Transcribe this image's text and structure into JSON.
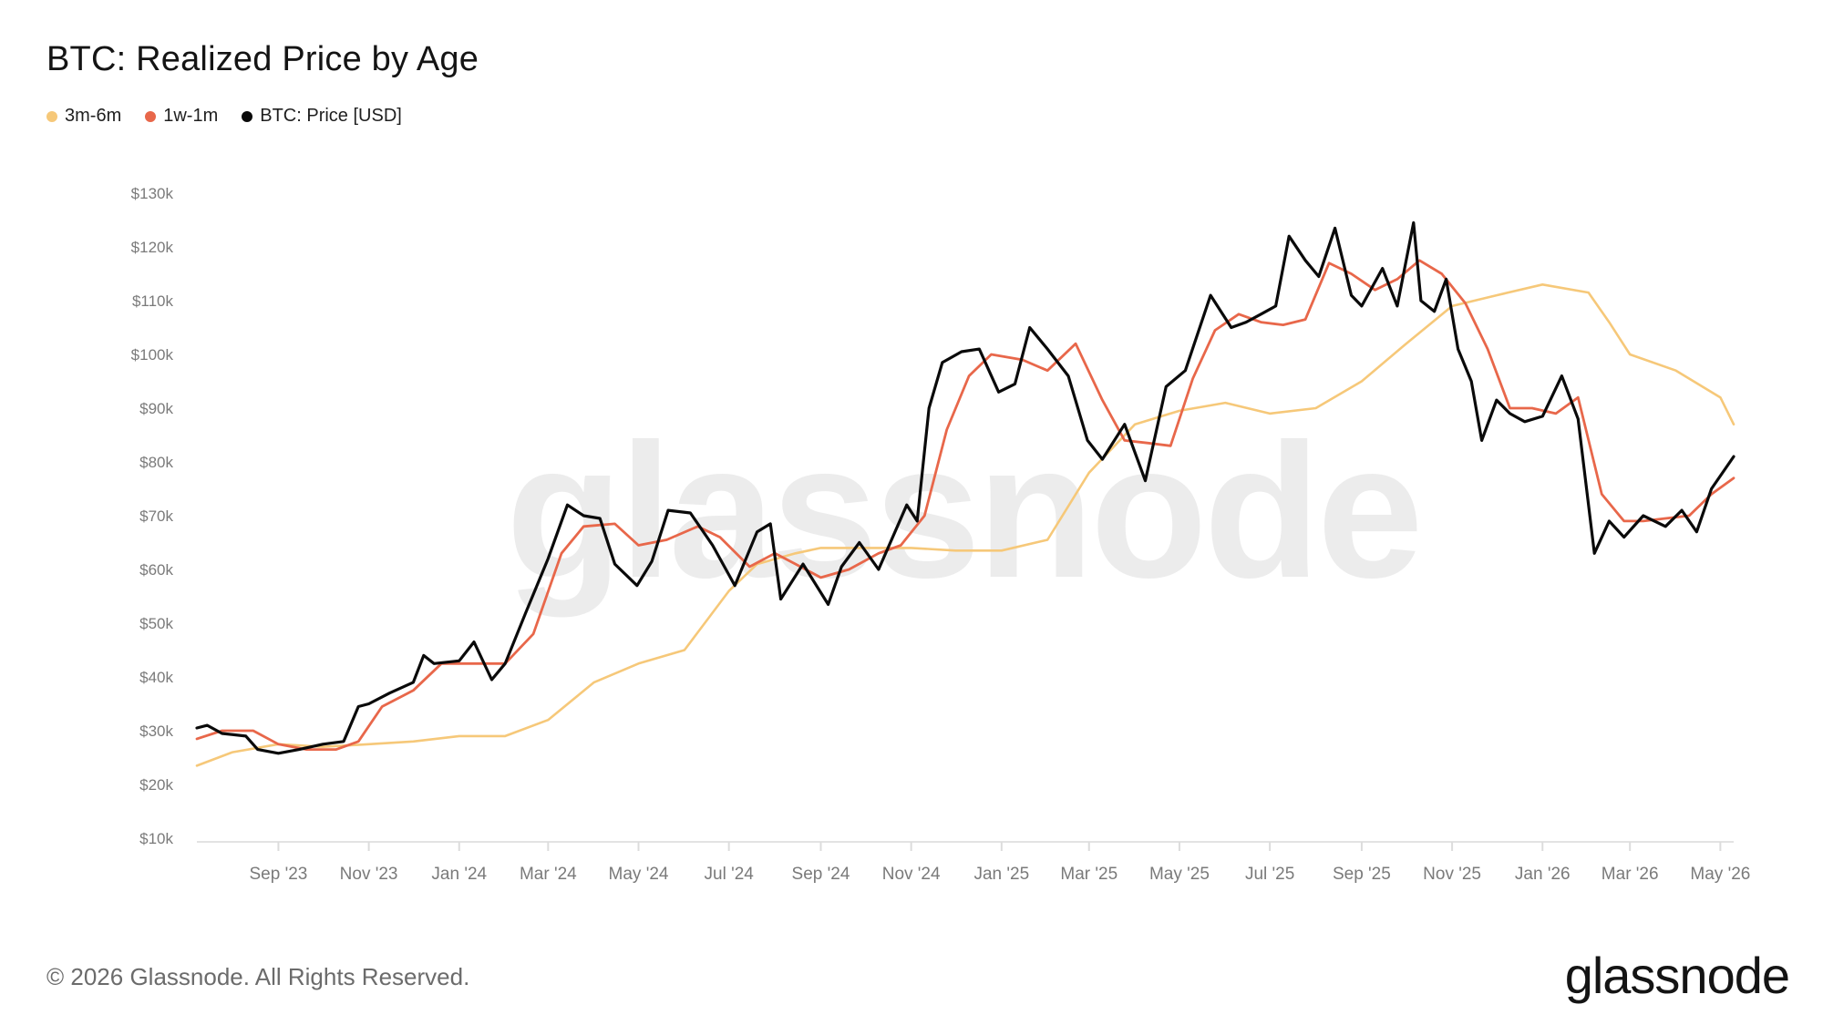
{
  "header": {
    "title": "BTC: Realized Price by Age"
  },
  "watermark": "glassnode",
  "footer": {
    "copyright": "© 2026 Glassnode. All Rights Reserved.",
    "brand": "glassnode"
  },
  "colors": {
    "3m-6m": "#f6c879",
    "1w-1m": "#e8674a",
    "price": "#0a0a0a",
    "grid": "#e6e6e6",
    "tick": "#7a7a7a"
  },
  "chart_data": {
    "type": "line",
    "title": "BTC: Realized Price by Age",
    "xlabel": "",
    "ylabel": "",
    "legend_position": "top-left",
    "grid": false,
    "x_range": [
      "2023-07-08",
      "2026-05-10"
    ],
    "ylim": [
      10000,
      130000
    ],
    "y_ticks": [
      10000,
      20000,
      30000,
      40000,
      50000,
      60000,
      70000,
      80000,
      90000,
      100000,
      110000,
      120000,
      130000
    ],
    "y_tick_labels": [
      "$10k",
      "$20k",
      "$30k",
      "$40k",
      "$50k",
      "$60k",
      "$70k",
      "$80k",
      "$90k",
      "$100k",
      "$110k",
      "$120k",
      "$130k"
    ],
    "x_ticks": [
      "2023-09-01",
      "2023-11-01",
      "2024-01-01",
      "2024-03-01",
      "2024-05-01",
      "2024-07-01",
      "2024-09-01",
      "2024-11-01",
      "2025-01-01",
      "2025-03-01",
      "2025-05-01",
      "2025-07-01",
      "2025-09-01",
      "2025-11-01",
      "2026-01-01",
      "2026-03-01",
      "2026-05-01"
    ],
    "x_tick_labels": [
      "Sep '23",
      "Nov '23",
      "Jan '24",
      "Mar '24",
      "May '24",
      "Jul '24",
      "Sep '24",
      "Nov '24",
      "Jan '25",
      "Mar '25",
      "May '25",
      "Jul '25",
      "Sep '25",
      "Nov '25",
      "Jan '26",
      "Mar '26",
      "May '26"
    ],
    "series": [
      {
        "name": "3m-6m",
        "color": "#f6c879",
        "x": [
          "2023-07-08",
          "2023-08-01",
          "2023-09-01",
          "2023-10-01",
          "2023-11-01",
          "2023-12-01",
          "2024-01-01",
          "2024-02-01",
          "2024-03-01",
          "2024-04-01",
          "2024-05-01",
          "2024-06-01",
          "2024-07-01",
          "2024-07-20",
          "2024-08-15",
          "2024-09-01",
          "2024-10-01",
          "2024-11-01",
          "2024-12-01",
          "2025-01-01",
          "2025-02-01",
          "2025-03-01",
          "2025-04-01",
          "2025-05-01",
          "2025-06-01",
          "2025-07-01",
          "2025-08-01",
          "2025-09-01",
          "2025-10-01",
          "2025-11-01",
          "2025-12-01",
          "2026-01-01",
          "2026-02-01",
          "2026-02-15",
          "2026-03-01",
          "2026-04-01",
          "2026-05-01",
          "2026-05-10"
        ],
        "values": [
          23500,
          26000,
          27500,
          27000,
          27500,
          28000,
          29000,
          29000,
          32000,
          39000,
          42500,
          45000,
          56000,
          61000,
          63000,
          64000,
          64000,
          64000,
          63500,
          63500,
          65500,
          78000,
          87000,
          89500,
          91000,
          89000,
          90000,
          95000,
          102000,
          109000,
          111000,
          113000,
          111500,
          106000,
          100000,
          97000,
          92000,
          87000
        ]
      },
      {
        "name": "1w-1m",
        "color": "#e8674a",
        "x": [
          "2023-07-08",
          "2023-07-25",
          "2023-08-15",
          "2023-09-01",
          "2023-09-20",
          "2023-10-10",
          "2023-10-25",
          "2023-11-10",
          "2023-12-01",
          "2023-12-20",
          "2024-01-10",
          "2024-02-01",
          "2024-02-20",
          "2024-03-10",
          "2024-03-25",
          "2024-04-15",
          "2024-05-01",
          "2024-05-20",
          "2024-06-10",
          "2024-06-25",
          "2024-07-15",
          "2024-08-01",
          "2024-08-15",
          "2024-09-01",
          "2024-09-20",
          "2024-10-10",
          "2024-10-25",
          "2024-11-10",
          "2024-11-25",
          "2024-12-10",
          "2024-12-25",
          "2025-01-15",
          "2025-02-01",
          "2025-02-20",
          "2025-03-10",
          "2025-03-25",
          "2025-04-10",
          "2025-04-25",
          "2025-05-10",
          "2025-05-25",
          "2025-06-10",
          "2025-06-25",
          "2025-07-10",
          "2025-07-25",
          "2025-08-10",
          "2025-08-25",
          "2025-09-10",
          "2025-09-25",
          "2025-10-10",
          "2025-10-25",
          "2025-11-10",
          "2025-11-25",
          "2025-12-10",
          "2025-12-25",
          "2026-01-10",
          "2026-01-25",
          "2026-02-10",
          "2026-02-25",
          "2026-03-10",
          "2026-03-25",
          "2026-04-10",
          "2026-04-25",
          "2026-05-10"
        ],
        "values": [
          28500,
          30000,
          30000,
          27500,
          26500,
          26500,
          28000,
          34500,
          37500,
          42500,
          42500,
          42500,
          48000,
          63000,
          68000,
          68500,
          64500,
          65500,
          68000,
          66000,
          60500,
          63000,
          61000,
          58500,
          60000,
          63000,
          64500,
          70000,
          86000,
          96000,
          100000,
          99000,
          97000,
          102000,
          91500,
          84000,
          83500,
          83000,
          95500,
          104500,
          107500,
          106000,
          105500,
          106500,
          117000,
          115000,
          112000,
          114000,
          117500,
          115000,
          109500,
          101000,
          90000,
          90000,
          89000,
          92000,
          74000,
          69000,
          69000,
          69500,
          70000,
          74000,
          77000
        ]
      },
      {
        "name": "BTC: Price [USD]",
        "color": "#0a0a0a",
        "x": [
          "2023-07-08",
          "2023-07-15",
          "2023-07-25",
          "2023-08-10",
          "2023-08-18",
          "2023-09-01",
          "2023-09-15",
          "2023-10-01",
          "2023-10-15",
          "2023-10-25",
          "2023-11-01",
          "2023-11-15",
          "2023-12-01",
          "2023-12-08",
          "2023-12-15",
          "2024-01-01",
          "2024-01-11",
          "2024-01-23",
          "2024-02-01",
          "2024-02-15",
          "2024-03-01",
          "2024-03-14",
          "2024-03-25",
          "2024-04-05",
          "2024-04-15",
          "2024-04-30",
          "2024-05-10",
          "2024-05-21",
          "2024-06-05",
          "2024-06-20",
          "2024-07-05",
          "2024-07-20",
          "2024-07-29",
          "2024-08-05",
          "2024-08-20",
          "2024-09-06",
          "2024-09-15",
          "2024-09-27",
          "2024-10-10",
          "2024-10-29",
          "2024-11-05",
          "2024-11-13",
          "2024-11-22",
          "2024-12-05",
          "2024-12-17",
          "2024-12-30",
          "2025-01-10",
          "2025-01-20",
          "2025-02-01",
          "2025-02-15",
          "2025-02-28",
          "2025-03-10",
          "2025-03-25",
          "2025-04-08",
          "2025-04-22",
          "2025-05-05",
          "2025-05-22",
          "2025-06-05",
          "2025-06-15",
          "2025-06-25",
          "2025-07-05",
          "2025-07-14",
          "2025-07-25",
          "2025-08-03",
          "2025-08-14",
          "2025-08-25",
          "2025-09-01",
          "2025-09-15",
          "2025-09-25",
          "2025-10-06",
          "2025-10-11",
          "2025-10-20",
          "2025-10-28",
          "2025-11-05",
          "2025-11-14",
          "2025-11-21",
          "2025-12-01",
          "2025-12-10",
          "2025-12-20",
          "2026-01-01",
          "2026-01-14",
          "2026-01-25",
          "2026-02-05",
          "2026-02-15",
          "2026-02-25",
          "2026-03-10",
          "2026-03-25",
          "2026-04-05",
          "2026-04-15",
          "2026-04-25",
          "2026-05-05",
          "2026-05-10"
        ],
        "values": [
          30500,
          31000,
          29500,
          29000,
          26500,
          25800,
          26500,
          27500,
          28000,
          34500,
          35000,
          37000,
          39000,
          44000,
          42500,
          43000,
          46500,
          39500,
          42500,
          52000,
          62000,
          72000,
          70000,
          69500,
          61000,
          57000,
          61500,
          71000,
          70500,
          64500,
          57000,
          67000,
          68500,
          54500,
          61000,
          53500,
          60500,
          65000,
          60000,
          72000,
          69000,
          90000,
          98500,
          100500,
          101000,
          93000,
          94500,
          105000,
          101000,
          96000,
          84000,
          80500,
          87000,
          76500,
          94000,
          97000,
          111000,
          105000,
          106000,
          107500,
          109000,
          122000,
          117500,
          114500,
          123500,
          111000,
          109000,
          116000,
          109000,
          124500,
          110000,
          108000,
          114000,
          101000,
          95000,
          84000,
          91500,
          89000,
          87500,
          88500,
          96000,
          88000,
          63000,
          69000,
          66000,
          70000,
          68000,
          71000,
          67000,
          75000,
          79000,
          81000
        ]
      }
    ]
  }
}
